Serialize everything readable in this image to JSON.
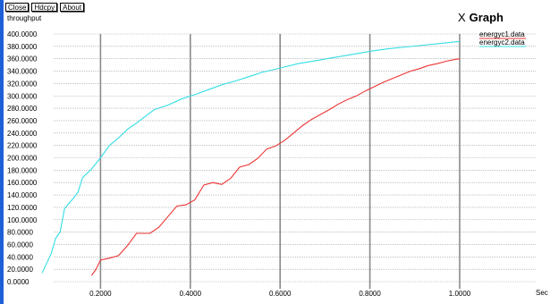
{
  "toolbar": {
    "close_label": "Close",
    "hdcpy_label": "Hdcpy",
    "about_label": "About"
  },
  "window_title": "Graph",
  "close_glyph": "X",
  "chart_data": {
    "type": "line",
    "ylabel": "throughput",
    "xlabel": "Sec",
    "xlim": [
      0.0,
      1.0
    ],
    "ylim": [
      0,
      400
    ],
    "grid": true,
    "legend_placement": "top-right",
    "y_ticks": [
      "0.0000",
      "20.0000",
      "40.0000",
      "60.0000",
      "80.0000",
      "100.0000",
      "120.0000",
      "140.0000",
      "160.0000",
      "180.0000",
      "200.0000",
      "220.0000",
      "240.0000",
      "260.0000",
      "280.0000",
      "300.0000",
      "320.0000",
      "340.0000",
      "360.0000",
      "380.0000",
      "400.0000"
    ],
    "x_ticks": [
      "0.2000",
      "0.4000",
      "0.6000",
      "0.8000",
      "1.0000"
    ],
    "x_tick_values": [
      0.2,
      0.4,
      0.6,
      0.8,
      1.0
    ],
    "series": [
      {
        "name": "energyc1.data",
        "color": "#ee3333",
        "points": [
          [
            0.18,
            10
          ],
          [
            0.19,
            20
          ],
          [
            0.2,
            35
          ],
          [
            0.22,
            38
          ],
          [
            0.24,
            42
          ],
          [
            0.26,
            58
          ],
          [
            0.28,
            78
          ],
          [
            0.31,
            78
          ],
          [
            0.33,
            88
          ],
          [
            0.35,
            105
          ],
          [
            0.37,
            122
          ],
          [
            0.39,
            124
          ],
          [
            0.41,
            132
          ],
          [
            0.43,
            156
          ],
          [
            0.45,
            160
          ],
          [
            0.47,
            157
          ],
          [
            0.49,
            167
          ],
          [
            0.51,
            185
          ],
          [
            0.53,
            189
          ],
          [
            0.55,
            199
          ],
          [
            0.57,
            214
          ],
          [
            0.59,
            219
          ],
          [
            0.61,
            228
          ],
          [
            0.63,
            240
          ],
          [
            0.65,
            252
          ],
          [
            0.67,
            262
          ],
          [
            0.69,
            270
          ],
          [
            0.71,
            278
          ],
          [
            0.73,
            287
          ],
          [
            0.75,
            294
          ],
          [
            0.77,
            300
          ],
          [
            0.79,
            308
          ],
          [
            0.81,
            315
          ],
          [
            0.83,
            322
          ],
          [
            0.85,
            328
          ],
          [
            0.87,
            334
          ],
          [
            0.89,
            340
          ],
          [
            0.91,
            344
          ],
          [
            0.93,
            349
          ],
          [
            0.95,
            352
          ],
          [
            0.97,
            356
          ],
          [
            0.99,
            359
          ],
          [
            1.0,
            360
          ]
        ]
      },
      {
        "name": "energyc2.data",
        "color": "#33dde4",
        "points": [
          [
            0.07,
            14
          ],
          [
            0.08,
            30
          ],
          [
            0.09,
            45
          ],
          [
            0.1,
            70
          ],
          [
            0.11,
            80
          ],
          [
            0.12,
            118
          ],
          [
            0.13,
            127
          ],
          [
            0.14,
            135
          ],
          [
            0.15,
            145
          ],
          [
            0.16,
            168
          ],
          [
            0.18,
            182
          ],
          [
            0.2,
            200
          ],
          [
            0.22,
            220
          ],
          [
            0.24,
            232
          ],
          [
            0.26,
            246
          ],
          [
            0.28,
            256
          ],
          [
            0.3,
            267
          ],
          [
            0.32,
            278
          ],
          [
            0.35,
            285
          ],
          [
            0.38,
            295
          ],
          [
            0.41,
            302
          ],
          [
            0.44,
            310
          ],
          [
            0.47,
            318
          ],
          [
            0.5,
            324
          ],
          [
            0.53,
            331
          ],
          [
            0.56,
            338
          ],
          [
            0.6,
            345
          ],
          [
            0.64,
            352
          ],
          [
            0.68,
            357
          ],
          [
            0.72,
            362
          ],
          [
            0.76,
            367
          ],
          [
            0.8,
            372
          ],
          [
            0.84,
            376
          ],
          [
            0.88,
            379
          ],
          [
            0.92,
            382
          ],
          [
            0.96,
            385
          ],
          [
            1.0,
            388
          ]
        ]
      }
    ]
  }
}
